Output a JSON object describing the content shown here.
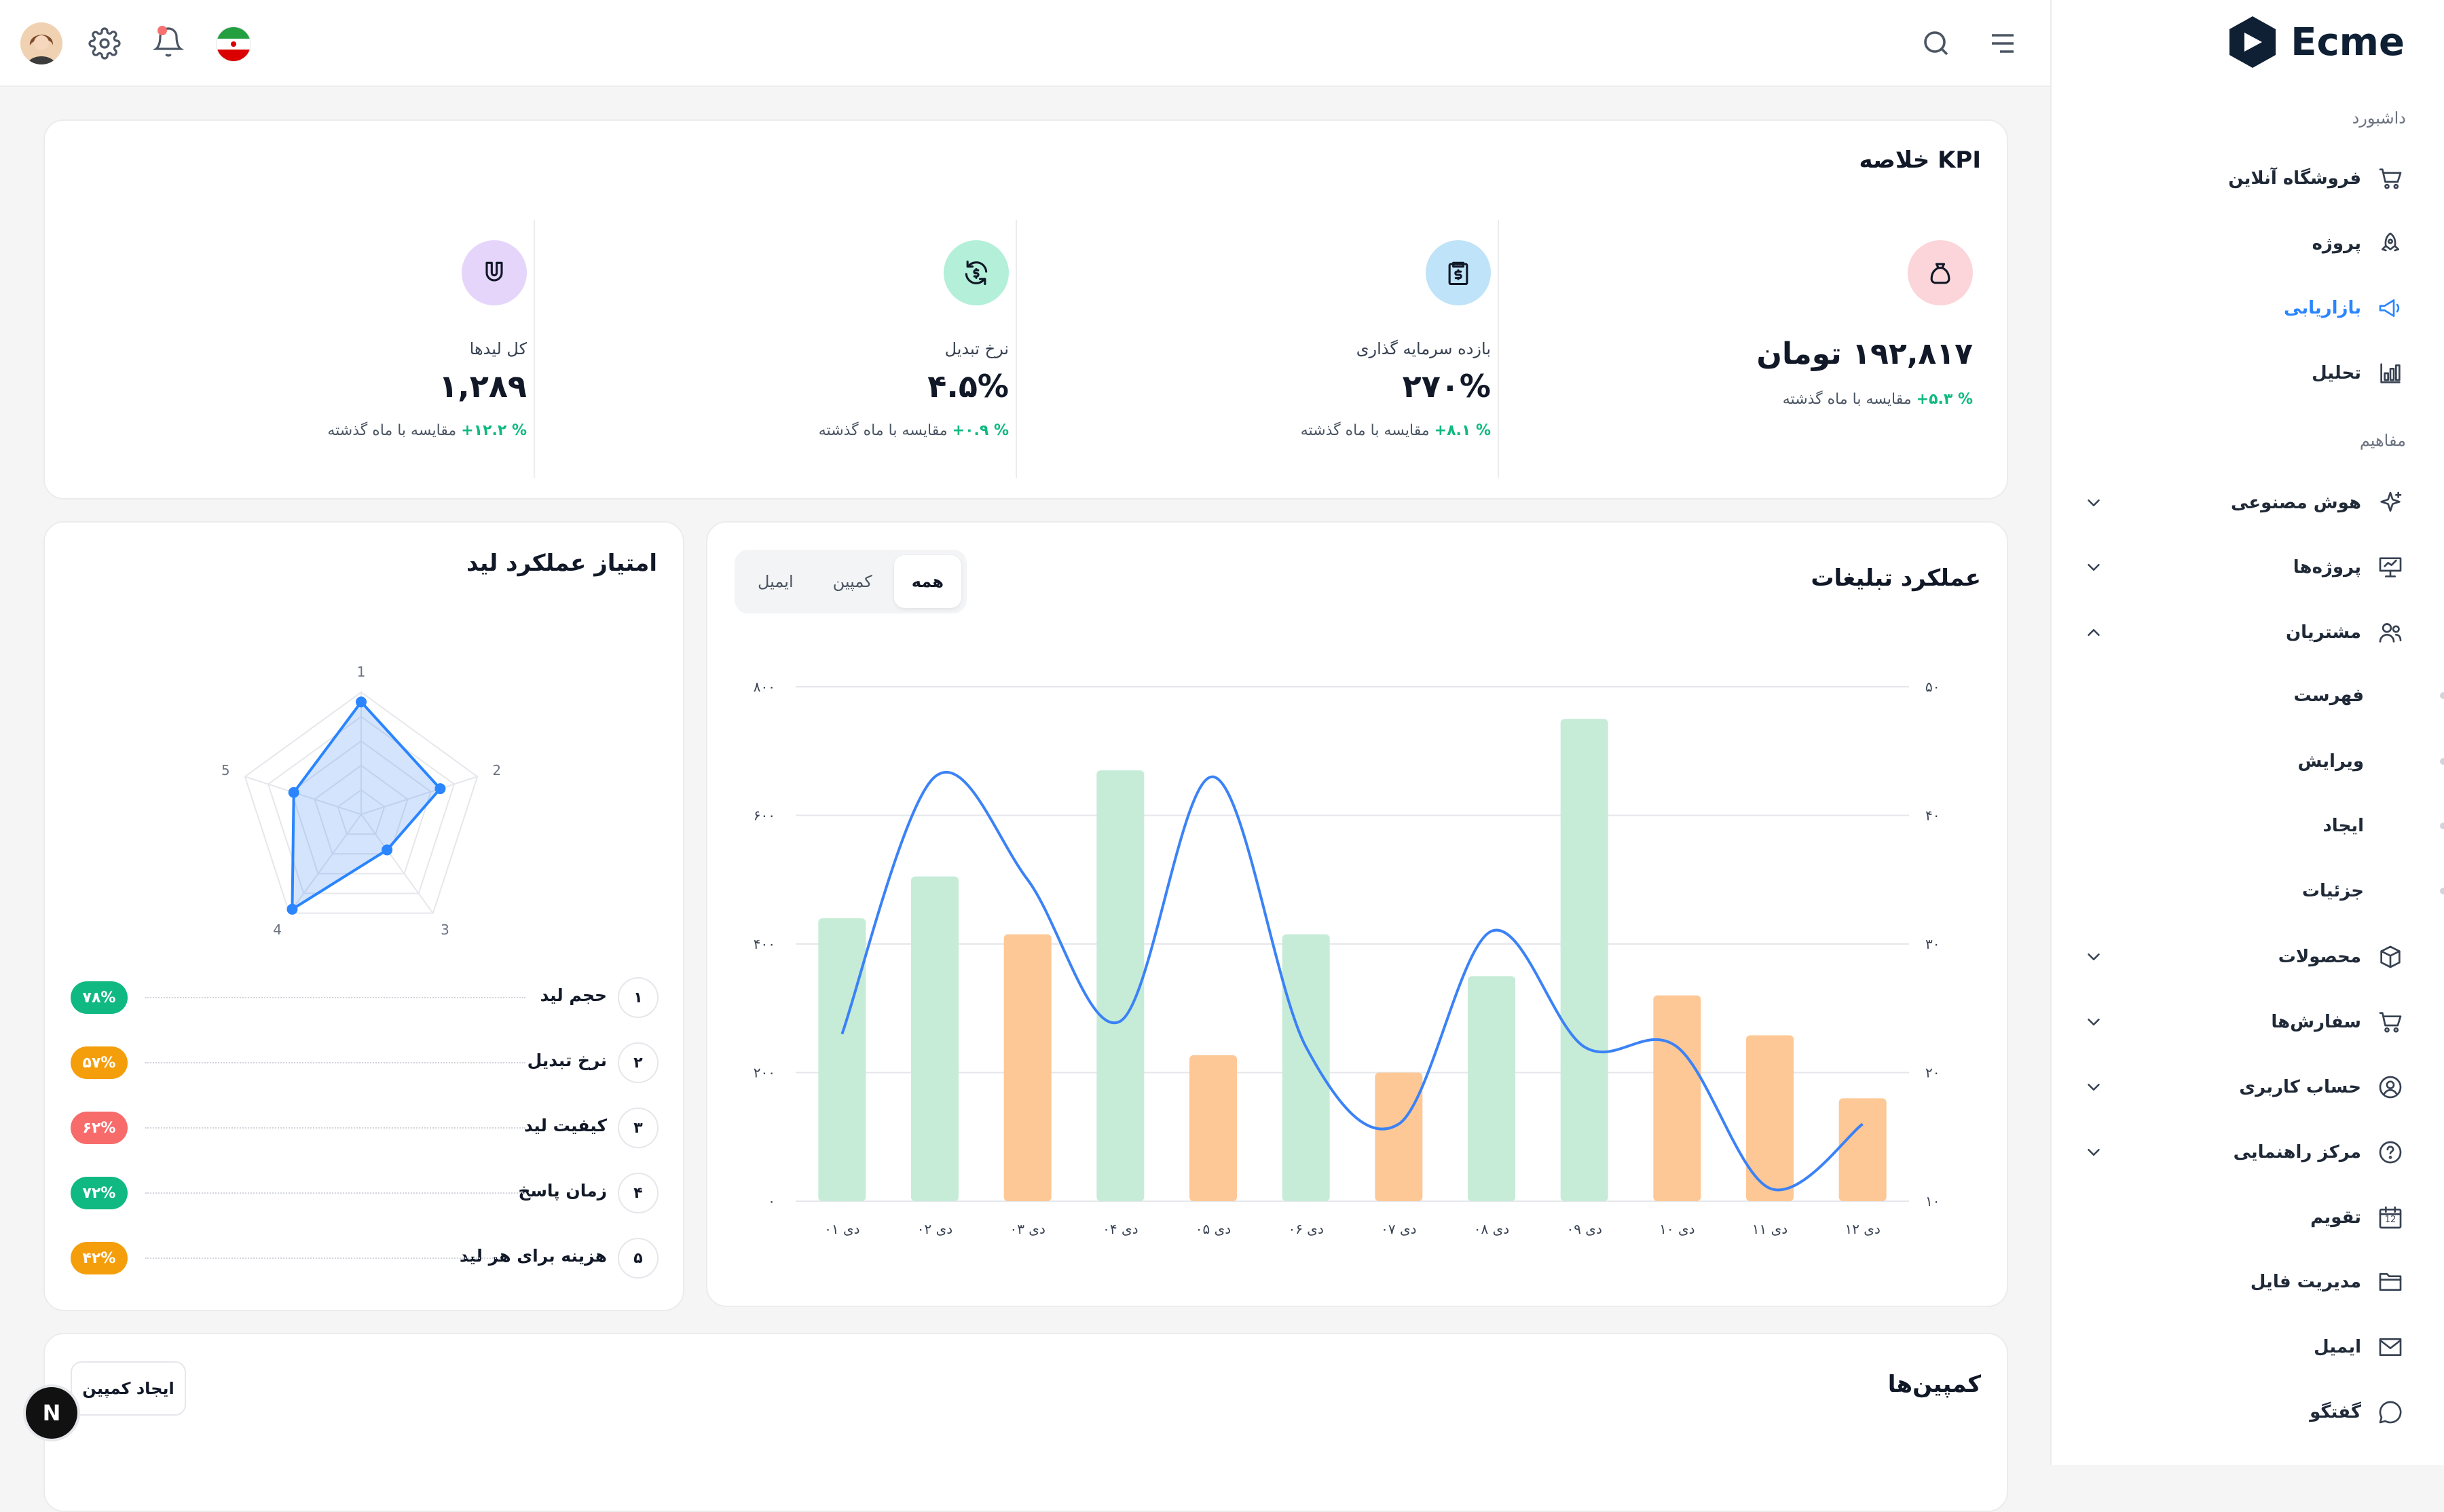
{
  "app": {
    "name": "Ecme"
  },
  "sidebar": {
    "group_dashboard": "داشبورد",
    "group_concepts": "مفاهیم",
    "items": [
      {
        "label": "فروشگاه آنلاین",
        "icon": "cart-icon"
      },
      {
        "label": "پروژه",
        "icon": "rocket-icon"
      },
      {
        "label": "بازاریابی",
        "icon": "megaphone-icon",
        "active": true
      },
      {
        "label": "تحلیل",
        "icon": "bar-chart-icon"
      }
    ],
    "concepts": [
      {
        "label": "هوش مصنوعی",
        "icon": "sparkle-icon",
        "chevron": "down"
      },
      {
        "label": "پروژه‌ها",
        "icon": "presentation-icon",
        "chevron": "down"
      },
      {
        "label": "مشتریان",
        "icon": "users-icon",
        "chevron": "up"
      }
    ],
    "customers_sub": [
      "فهرست",
      "ویرایش",
      "ایجاد",
      "جزئیات"
    ],
    "more": [
      {
        "label": "محصولات",
        "icon": "box-icon",
        "chevron": "down"
      },
      {
        "label": "سفارش‌ها",
        "icon": "cart-icon",
        "chevron": "down"
      },
      {
        "label": "حساب کاربری",
        "icon": "user-circle-icon",
        "chevron": "down"
      },
      {
        "label": "مرکز راهنمایی",
        "icon": "help-icon",
        "chevron": "down"
      },
      {
        "label": "تقویم",
        "icon": "calendar-icon",
        "chevron": ""
      },
      {
        "label": "مدیریت فایل",
        "icon": "folder-icon",
        "chevron": ""
      },
      {
        "label": "ایمیل",
        "icon": "mail-icon",
        "chevron": ""
      },
      {
        "label": "گفتگو",
        "icon": "chat-icon",
        "chevron": ""
      }
    ],
    "calendar_day": "12"
  },
  "kpi": {
    "title": "خلاصه KPI",
    "items": [
      {
        "label": "",
        "value": "۱۹۲,۸۱۷ تومان",
        "delta": "+۵.۳ %",
        "compare": "مقایسه با ماه گذشته",
        "icon": "bag-icon",
        "color": "#fbd5d9"
      },
      {
        "label": "بازده سرمایه گذاری",
        "value": "۲۷۰%",
        "delta": "+۸.۱ %",
        "compare": "مقایسه با ماه گذشته",
        "icon": "receipt-dollar-icon",
        "color": "#bfe3f8"
      },
      {
        "label": "نرخ تبدیل",
        "value": "۴.۵%",
        "delta": "+۰.۹ %",
        "compare": "مقایسه با ماه گذشته",
        "icon": "refresh-dollar-icon",
        "color": "#b3efd9"
      },
      {
        "label": "کل لیدها",
        "value": "۱,۲۸۹",
        "delta": "+۱۲.۲ %",
        "compare": "مقایسه با ماه گذشته",
        "icon": "magnet-icon",
        "color": "#e5d5fb"
      }
    ]
  },
  "ads": {
    "title": "عملکرد تبلیغات",
    "tabs": [
      "همه",
      "کمپین",
      "ایمیل"
    ],
    "active_tab": 0
  },
  "chart_data": {
    "type": "bar",
    "categories": [
      "دی ۰۱",
      "دی ۰۲",
      "دی ۰۳",
      "دی ۰۴",
      "دی ۰۵",
      "دی ۰۶",
      "دی ۰۷",
      "دی ۰۸",
      "دی ۰۹",
      "دی ۱۰",
      "دی ۱۱",
      "دی ۱۲"
    ],
    "bar_values": [
      440,
      505,
      415,
      670,
      227,
      415,
      200,
      350,
      750,
      320,
      258,
      160
    ],
    "bar_colors": [
      "#c6ecd8",
      "#c6ecd8",
      "#fdc896",
      "#c6ecd8",
      "#fdc896",
      "#c6ecd8",
      "#fdc896",
      "#c6ecd8",
      "#c6ecd8",
      "#fdc896",
      "#fdc896",
      "#fdc896"
    ],
    "line_values": [
      23,
      43,
      35,
      24,
      43,
      22,
      16,
      31,
      22,
      22,
      11,
      16
    ],
    "line_color": "#3b82f6",
    "y_left_ticks": [
      "۰",
      "۲۰۰",
      "۴۰۰",
      "۶۰۰",
      "۸۰۰"
    ],
    "y_left_lim": [
      0,
      800
    ],
    "y_right_ticks": [
      "۱۰",
      "۲۰",
      "۳۰",
      "۴۰",
      "۵۰"
    ],
    "y_right_lim": [
      10,
      50
    ],
    "grid": true
  },
  "lead": {
    "title": "امتیاز عملکرد لید",
    "radar_axes": [
      "1",
      "2",
      "3",
      "4",
      "5"
    ],
    "radar_values": [
      92,
      68,
      36,
      96,
      58
    ],
    "rows": [
      {
        "num": "۱",
        "label": "حجم لید",
        "pill": "۷۸%",
        "color": "#10b981"
      },
      {
        "num": "۲",
        "label": "نرخ تبدیل",
        "pill": "۵۷%",
        "color": "#f59e0b"
      },
      {
        "num": "۳",
        "label": "کیفیت لید",
        "pill": "۶۲%",
        "color": "#f76b6b"
      },
      {
        "num": "۴",
        "label": "زمان پاسخ",
        "pill": "۷۲%",
        "color": "#10b981"
      },
      {
        "num": "۵",
        "label": "هزینه برای هر لید",
        "pill": "۴۲%",
        "color": "#f59e0b"
      }
    ]
  },
  "campaigns": {
    "title": "کمپین‌ها",
    "create_button": "ایجاد کمپین"
  },
  "fab": {
    "label": "N"
  }
}
